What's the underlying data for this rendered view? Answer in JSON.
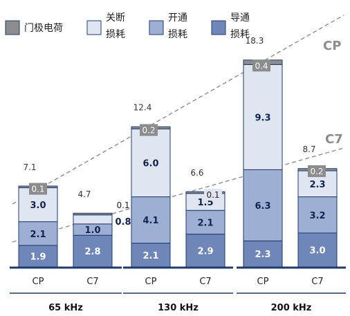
{
  "chart_data": {
    "type": "bar",
    "stacked": true,
    "groups": [
      "65 kHz",
      "130 kHz",
      "200 kHz"
    ],
    "categories": [
      "CP",
      "C7",
      "CP",
      "C7",
      "CP",
      "C7"
    ],
    "series": [
      {
        "name": "导通损耗",
        "color": "#6e87b8",
        "values": [
          1.9,
          2.8,
          2.1,
          2.9,
          2.3,
          3.0
        ]
      },
      {
        "name": "开通损耗",
        "color": "#9db0d3",
        "values": [
          2.1,
          1.0,
          4.1,
          2.1,
          6.3,
          3.2
        ]
      },
      {
        "name": "关断损耗",
        "color": "#dfe6f2",
        "values": [
          3.0,
          0.8,
          6.0,
          1.5,
          9.3,
          2.3
        ]
      },
      {
        "name": "门极电荷",
        "color": "#8c8c8c",
        "values": [
          0.1,
          0.1,
          0.2,
          0.1,
          0.4,
          0.2
        ]
      }
    ],
    "totals": [
      7.1,
      4.7,
      12.4,
      6.6,
      18.3,
      8.7
    ],
    "trend_lines": [
      "CP",
      "C7"
    ],
    "legend": [
      {
        "label": "门极电荷",
        "color": "#8c8c8c"
      },
      {
        "label": "关断\n损耗",
        "color": "#dfe6f2"
      },
      {
        "label": "开通\n损耗",
        "color": "#9db0d3"
      },
      {
        "label": "导通\n损耗",
        "color": "#6e87b8"
      }
    ],
    "legend_placement": "top",
    "grid": false
  }
}
